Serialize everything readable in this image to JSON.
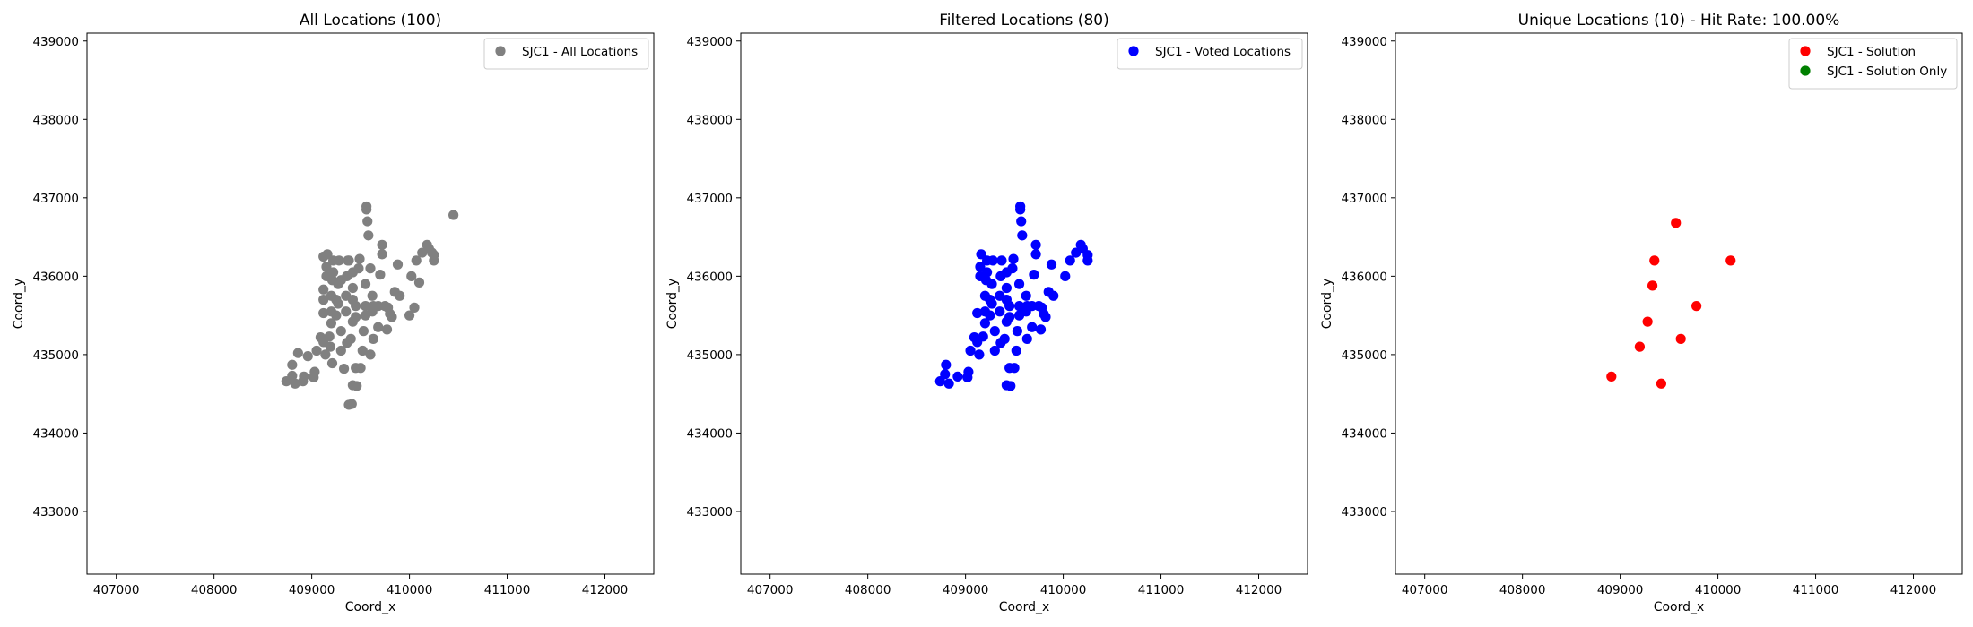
{
  "chart_data": [
    {
      "type": "scatter",
      "title": "All Locations (100)",
      "xlabel": "Coord_x",
      "ylabel": "Coord_y",
      "xlim": [
        406700,
        412500
      ],
      "ylim": [
        432200,
        439100
      ],
      "xticks": [
        407000,
        408000,
        409000,
        410000,
        411000,
        412000
      ],
      "yticks": [
        433000,
        434000,
        435000,
        436000,
        437000,
        438000,
        439000
      ],
      "grid": false,
      "legend_position": "top-right",
      "series": [
        {
          "name": "SJC1 - All Locations",
          "color": "#808080",
          "points": [
            [
              8.74,
              4.66
            ],
            [
              8.8,
              4.73
            ],
            [
              8.8,
              4.87
            ],
            [
              8.83,
              4.63
            ],
            [
              8.86,
              5.02
            ],
            [
              8.91,
              4.66
            ],
            [
              8.92,
              4.72
            ],
            [
              8.96,
              4.98
            ],
            [
              9.02,
              4.71
            ],
            [
              9.03,
              4.78
            ],
            [
              9.05,
              5.05
            ],
            [
              9.09,
              5.22
            ],
            [
              9.12,
              5.16
            ],
            [
              9.14,
              5.0
            ],
            [
              9.12,
              5.53
            ],
            [
              9.12,
              5.7
            ],
            [
              9.12,
              5.83
            ],
            [
              9.12,
              6.25
            ],
            [
              9.15,
              6.0
            ],
            [
              9.15,
              6.12
            ],
            [
              9.16,
              6.28
            ],
            [
              9.18,
              5.23
            ],
            [
              9.19,
              5.1
            ],
            [
              9.2,
              5.4
            ],
            [
              9.2,
              5.55
            ],
            [
              9.2,
              5.75
            ],
            [
              9.21,
              5.95
            ],
            [
              9.22,
              6.05
            ],
            [
              9.22,
              6.2
            ],
            [
              9.21,
              4.89
            ],
            [
              9.25,
              5.5
            ],
            [
              9.27,
              5.65
            ],
            [
              9.27,
              5.9
            ],
            [
              9.28,
              6.2
            ],
            [
              9.3,
              5.3
            ],
            [
              9.3,
              5.05
            ],
            [
              9.33,
              4.82
            ],
            [
              9.38,
              4.36
            ],
            [
              9.41,
              4.37
            ],
            [
              9.36,
              5.15
            ],
            [
              9.35,
              5.55
            ],
            [
              9.35,
              5.75
            ],
            [
              9.36,
              6.0
            ],
            [
              9.37,
              6.2
            ],
            [
              9.4,
              5.2
            ],
            [
              9.42,
              5.42
            ],
            [
              9.42,
              5.7
            ],
            [
              9.42,
              5.85
            ],
            [
              9.42,
              6.05
            ],
            [
              9.42,
              4.61
            ],
            [
              9.46,
              4.6
            ],
            [
              9.45,
              4.83
            ],
            [
              9.45,
              5.48
            ],
            [
              9.45,
              5.62
            ],
            [
              9.48,
              6.1
            ],
            [
              9.49,
              6.22
            ],
            [
              9.5,
              4.83
            ],
            [
              9.52,
              5.05
            ],
            [
              9.53,
              5.3
            ],
            [
              9.55,
              5.5
            ],
            [
              9.55,
              5.62
            ],
            [
              9.55,
              5.9
            ],
            [
              9.56,
              6.85
            ],
            [
              9.56,
              6.89
            ],
            [
              9.57,
              6.7
            ],
            [
              9.58,
              6.52
            ],
            [
              9.6,
              6.1
            ],
            [
              9.62,
              5.55
            ],
            [
              9.62,
              5.75
            ],
            [
              9.63,
              5.2
            ],
            [
              9.63,
              5.62
            ],
            [
              9.68,
              5.35
            ],
            [
              9.68,
              5.62
            ],
            [
              9.7,
              6.02
            ],
            [
              9.72,
              6.28
            ],
            [
              9.72,
              6.4
            ],
            [
              9.75,
              5.62
            ],
            [
              9.77,
              5.32
            ],
            [
              9.78,
              5.6
            ],
            [
              9.8,
              5.52
            ],
            [
              9.82,
              5.48
            ],
            [
              9.85,
              5.8
            ],
            [
              9.88,
              6.15
            ],
            [
              9.9,
              5.75
            ],
            [
              10.0,
              5.5
            ],
            [
              10.02,
              6.0
            ],
            [
              10.05,
              5.6
            ],
            [
              10.07,
              6.2
            ],
            [
              10.1,
              5.92
            ],
            [
              10.13,
              6.3
            ],
            [
              10.18,
              6.4
            ],
            [
              10.2,
              6.35
            ],
            [
              10.23,
              6.3
            ],
            [
              10.25,
              6.27
            ],
            [
              10.25,
              6.2
            ],
            [
              10.45,
              6.78
            ],
            [
              9.38,
              6.2
            ],
            [
              9.3,
              5.95
            ],
            [
              9.6,
              5.0
            ],
            [
              9.25,
              5.7
            ]
          ]
        }
      ]
    },
    {
      "type": "scatter",
      "title": "Filtered Locations (80)",
      "xlabel": "Coord_x",
      "ylabel": "Coord_y",
      "xlim": [
        406700,
        412500
      ],
      "ylim": [
        432200,
        439100
      ],
      "xticks": [
        407000,
        408000,
        409000,
        410000,
        411000,
        412000
      ],
      "yticks": [
        433000,
        434000,
        435000,
        436000,
        437000,
        438000,
        439000
      ],
      "grid": false,
      "legend_position": "top-right",
      "series": [
        {
          "name": "SJC1 - Voted Locations",
          "color": "#0000ff",
          "points": [
            [
              8.74,
              4.66
            ],
            [
              8.79,
              4.75
            ],
            [
              8.8,
              4.87
            ],
            [
              8.83,
              4.63
            ],
            [
              8.92,
              4.72
            ],
            [
              9.02,
              4.71
            ],
            [
              9.03,
              4.78
            ],
            [
              9.05,
              5.05
            ],
            [
              9.09,
              5.22
            ],
            [
              9.12,
              5.16
            ],
            [
              9.14,
              5.0
            ],
            [
              9.12,
              5.53
            ],
            [
              9.15,
              6.0
            ],
            [
              9.15,
              6.12
            ],
            [
              9.16,
              6.28
            ],
            [
              9.18,
              5.23
            ],
            [
              9.2,
              5.4
            ],
            [
              9.2,
              5.55
            ],
            [
              9.2,
              5.75
            ],
            [
              9.21,
              5.95
            ],
            [
              9.22,
              6.05
            ],
            [
              9.22,
              6.2
            ],
            [
              9.25,
              5.5
            ],
            [
              9.27,
              5.65
            ],
            [
              9.27,
              5.9
            ],
            [
              9.28,
              6.2
            ],
            [
              9.3,
              5.3
            ],
            [
              9.3,
              5.05
            ],
            [
              9.36,
              5.15
            ],
            [
              9.35,
              5.55
            ],
            [
              9.35,
              5.75
            ],
            [
              9.36,
              6.0
            ],
            [
              9.37,
              6.2
            ],
            [
              9.4,
              5.2
            ],
            [
              9.42,
              5.42
            ],
            [
              9.42,
              5.7
            ],
            [
              9.42,
              5.85
            ],
            [
              9.42,
              6.05
            ],
            [
              9.42,
              4.61
            ],
            [
              9.46,
              4.6
            ],
            [
              9.45,
              4.83
            ],
            [
              9.45,
              5.48
            ],
            [
              9.45,
              5.62
            ],
            [
              9.48,
              6.1
            ],
            [
              9.49,
              6.22
            ],
            [
              9.5,
              4.83
            ],
            [
              9.52,
              5.05
            ],
            [
              9.53,
              5.3
            ],
            [
              9.55,
              5.5
            ],
            [
              9.55,
              5.62
            ],
            [
              9.55,
              5.9
            ],
            [
              9.56,
              6.85
            ],
            [
              9.56,
              6.89
            ],
            [
              9.57,
              6.7
            ],
            [
              9.58,
              6.52
            ],
            [
              9.62,
              5.55
            ],
            [
              9.62,
              5.75
            ],
            [
              9.63,
              5.2
            ],
            [
              9.63,
              5.62
            ],
            [
              9.68,
              5.35
            ],
            [
              9.68,
              5.62
            ],
            [
              9.7,
              6.02
            ],
            [
              9.72,
              6.28
            ],
            [
              9.72,
              6.4
            ],
            [
              9.75,
              5.62
            ],
            [
              9.77,
              5.32
            ],
            [
              9.78,
              5.6
            ],
            [
              9.8,
              5.52
            ],
            [
              9.82,
              5.48
            ],
            [
              9.85,
              5.8
            ],
            [
              9.88,
              6.15
            ],
            [
              9.9,
              5.75
            ],
            [
              10.02,
              6.0
            ],
            [
              10.07,
              6.2
            ],
            [
              10.13,
              6.3
            ],
            [
              10.18,
              6.4
            ],
            [
              10.2,
              6.35
            ],
            [
              10.25,
              6.27
            ],
            [
              10.25,
              6.2
            ],
            [
              9.25,
              5.7
            ]
          ]
        }
      ]
    },
    {
      "type": "scatter",
      "title": "Unique Locations (10) - Hit Rate: 100.00%",
      "xlabel": "Coord_x",
      "ylabel": "Coord_y",
      "xlim": [
        406700,
        412500
      ],
      "ylim": [
        432200,
        439100
      ],
      "xticks": [
        407000,
        408000,
        409000,
        410000,
        411000,
        412000
      ],
      "yticks": [
        433000,
        434000,
        435000,
        436000,
        437000,
        438000,
        439000
      ],
      "grid": false,
      "legend_position": "top-right",
      "series": [
        {
          "name": "SJC1 - Solution",
          "color": "#ff0000",
          "points": [
            [
              8.91,
              4.72
            ],
            [
              9.2,
              5.1
            ],
            [
              9.28,
              5.42
            ],
            [
              9.33,
              5.88
            ],
            [
              9.35,
              6.2
            ],
            [
              9.42,
              4.63
            ],
            [
              9.57,
              6.68
            ],
            [
              9.62,
              5.2
            ],
            [
              9.78,
              5.62
            ],
            [
              10.13,
              6.2
            ]
          ]
        },
        {
          "name": "SJC1 - Solution Only",
          "color": "#008000",
          "points": []
        }
      ]
    }
  ]
}
